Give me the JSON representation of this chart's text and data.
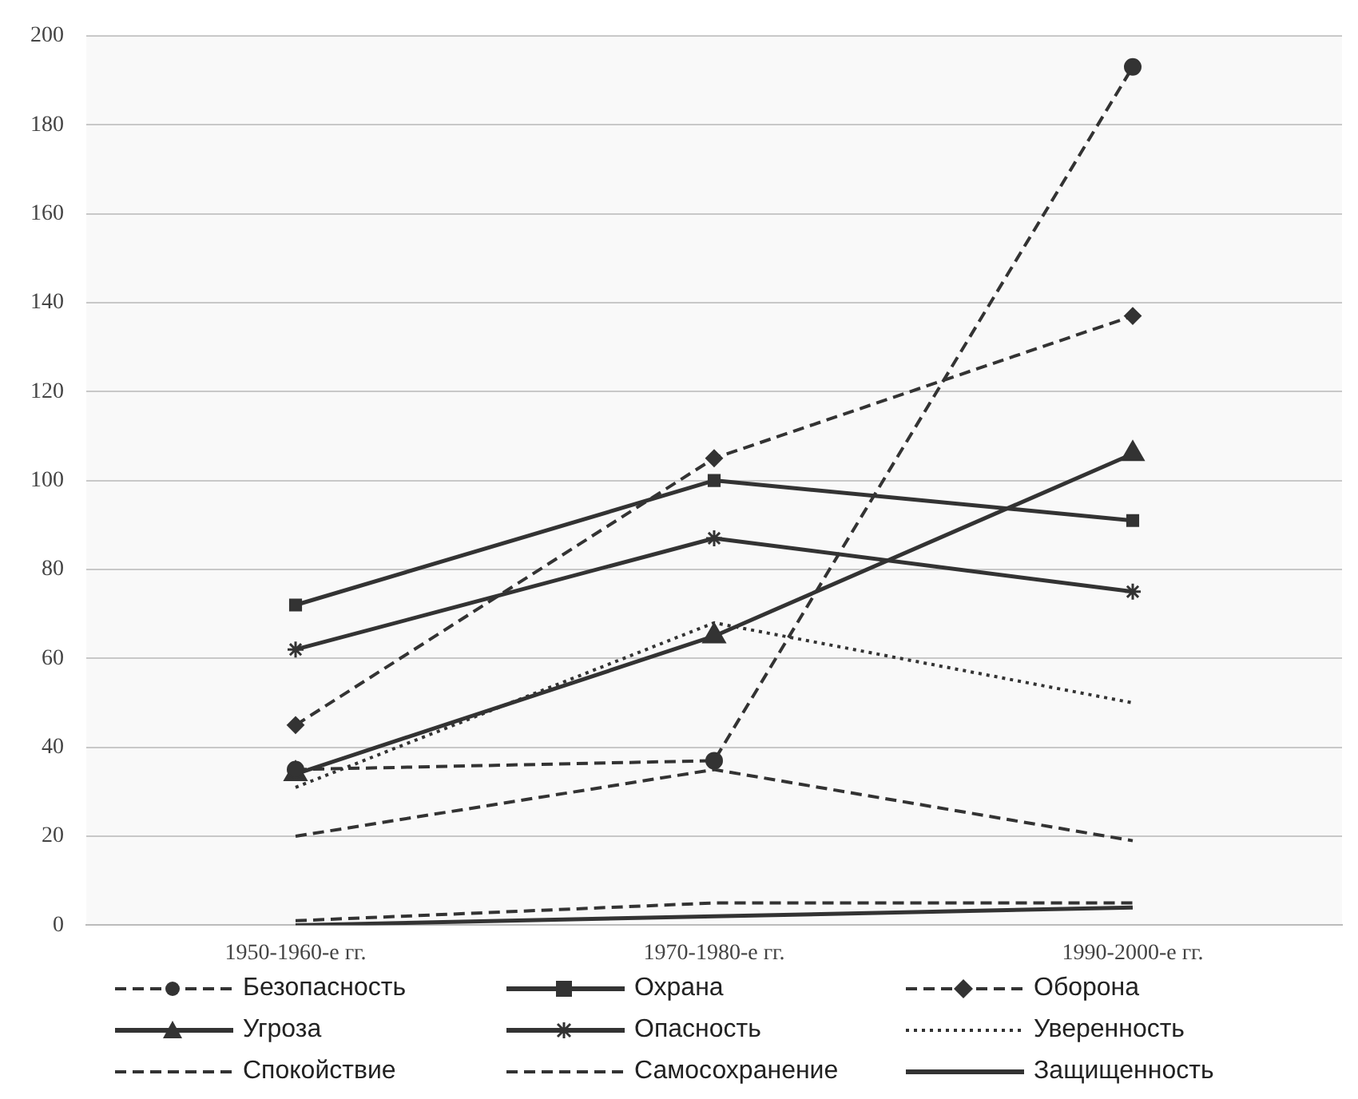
{
  "chart_data": {
    "type": "line",
    "categories": [
      "1950-1960-е гг.",
      "1970-1980-е гг.",
      "1990-2000-е гг."
    ],
    "ylim": [
      0,
      200
    ],
    "yticks": [
      0,
      20,
      40,
      60,
      80,
      100,
      120,
      140,
      160,
      180,
      200
    ],
    "grid": "y",
    "legend": "bottom",
    "series": [
      {
        "name": "Безопасность",
        "color": "#333333",
        "values": [
          35,
          37,
          193
        ],
        "marker": "circle",
        "line_style": "dashed"
      },
      {
        "name": "Охрана",
        "color": "#333333",
        "values": [
          72,
          100,
          91
        ],
        "marker": "square",
        "line_style": "solid"
      },
      {
        "name": "Оборона",
        "color": "#333333",
        "values": [
          45,
          105,
          137
        ],
        "marker": "diamond",
        "line_style": "dashed"
      },
      {
        "name": "Угроза",
        "color": "#333333",
        "values": [
          34,
          65,
          106
        ],
        "marker": "triangle",
        "line_style": "solid"
      },
      {
        "name": "Опасность",
        "color": "#333333",
        "values": [
          62,
          87,
          75
        ],
        "marker": "cross",
        "line_style": "solid"
      },
      {
        "name": "Уверенность",
        "color": "#333333",
        "values": [
          31,
          68,
          50
        ],
        "marker": "none",
        "line_style": "dotted"
      },
      {
        "name": "Спокойствие",
        "color": "#333333",
        "values": [
          20,
          35,
          19
        ],
        "marker": "none",
        "line_style": "dashed"
      },
      {
        "name": "Самосохранение",
        "color": "#333333",
        "values": [
          1,
          5,
          5
        ],
        "marker": "none",
        "line_style": "dashed"
      },
      {
        "name": "Защищенность",
        "color": "#333333",
        "values": [
          0,
          2,
          4
        ],
        "marker": "none",
        "line_style": "solid"
      }
    ]
  }
}
